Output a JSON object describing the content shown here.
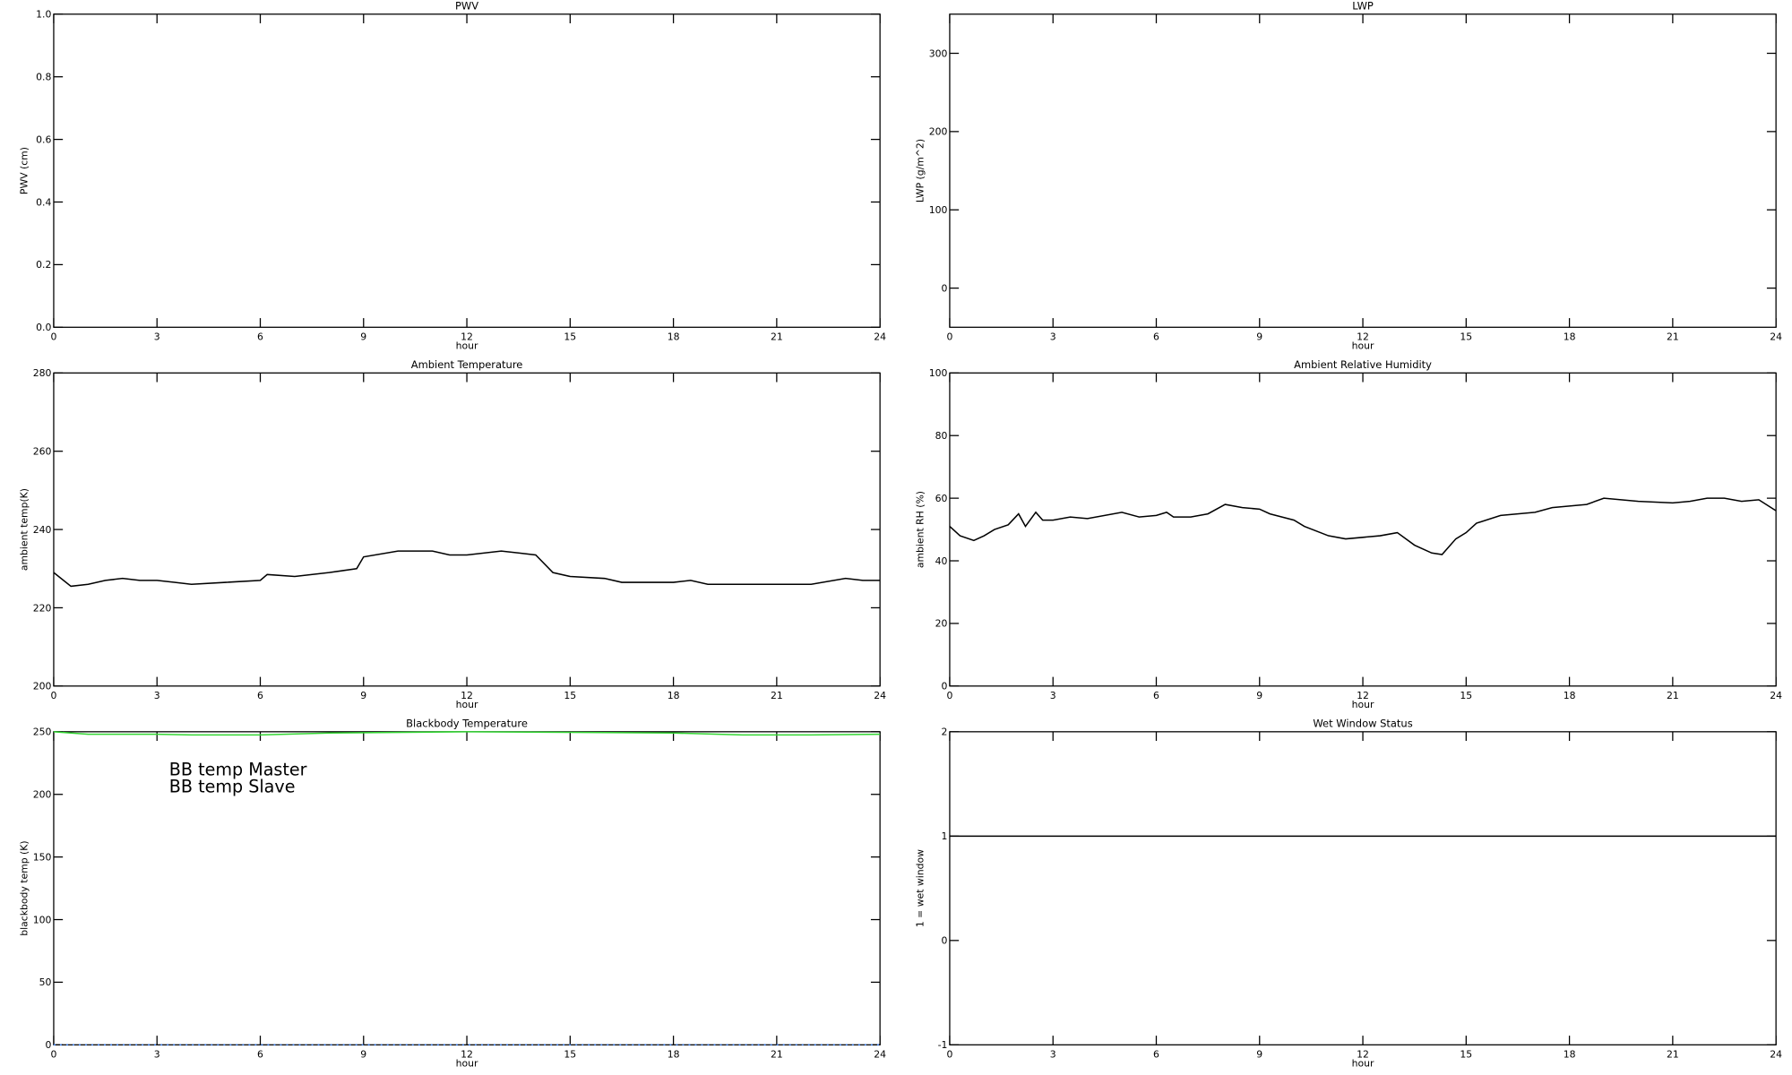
{
  "chart_data": [
    {
      "type": "line",
      "title": "PWV",
      "xlabel": "hour",
      "ylabel": "PWV (cm)",
      "xlim": [
        0,
        24
      ],
      "xticks": [
        0,
        3,
        6,
        9,
        12,
        15,
        18,
        21,
        24
      ],
      "ylim": [
        0,
        1
      ],
      "yticks": [
        {
          "value": 0,
          "label": "0.0"
        },
        0.2,
        0.4,
        0.6,
        0.8,
        {
          "value": 1,
          "label": "1.0"
        }
      ]
    },
    {
      "type": "line",
      "title": "LWP",
      "xlabel": "hour",
      "ylabel": "LWP (g/m^2)",
      "xlim": [
        0,
        24
      ],
      "xticks": [
        0,
        3,
        6,
        9,
        12,
        15,
        18,
        21,
        24
      ],
      "ylim": [
        -50,
        350
      ],
      "yticks": [
        0,
        100,
        200,
        300
      ]
    },
    {
      "type": "line",
      "title": "Ambient Temperature",
      "xlabel": "hour",
      "ylabel": "ambient temp(K)",
      "xlim": [
        0,
        24
      ],
      "xticks": [
        0,
        3,
        6,
        9,
        12,
        15,
        18,
        21,
        24
      ],
      "ylim": [
        200,
        280
      ],
      "yticks": [
        200,
        220,
        240,
        260,
        280
      ],
      "x": [
        0,
        0.5,
        1,
        1.5,
        2,
        2.5,
        3,
        3.5,
        4,
        5,
        6,
        6.2,
        7,
        8,
        8.8,
        9,
        10,
        11,
        11.5,
        12,
        13,
        13.5,
        14,
        14.5,
        15,
        16,
        16.5,
        17,
        18,
        18.5,
        19,
        20,
        21,
        22,
        23,
        23.5,
        24
      ],
      "series": [
        {
          "color": "#000000",
          "values": [
            229,
            225.5,
            226,
            227,
            227.5,
            227,
            227,
            226.5,
            226,
            226.5,
            227,
            228.5,
            228,
            229,
            230,
            233,
            234.5,
            234.5,
            233.5,
            233.5,
            234.5,
            234,
            233.5,
            229,
            228,
            227.5,
            226.5,
            226.5,
            226.5,
            227,
            226,
            226,
            226,
            226,
            227.5,
            227,
            227
          ]
        }
      ]
    },
    {
      "type": "line",
      "title": "Ambient Relative Humidity",
      "xlabel": "hour",
      "ylabel": "ambient RH (%)",
      "xlim": [
        0,
        24
      ],
      "xticks": [
        0,
        3,
        6,
        9,
        12,
        15,
        18,
        21,
        24
      ],
      "ylim": [
        0,
        100
      ],
      "yticks": [
        0,
        20,
        40,
        60,
        80,
        100
      ],
      "x": [
        0,
        0.3,
        0.7,
        1,
        1.3,
        1.7,
        2,
        2.2,
        2.5,
        2.7,
        3,
        3.5,
        4,
        5,
        5.5,
        6,
        6.3,
        6.5,
        7,
        7.5,
        8,
        8.5,
        9,
        9.3,
        10,
        10.3,
        11,
        11.5,
        12,
        12.5,
        13,
        13.5,
        14,
        14.3,
        14.7,
        15,
        15.3,
        16,
        17,
        17.5,
        18,
        18.5,
        19,
        19.5,
        20,
        21,
        21.5,
        22,
        22.5,
        23,
        23.5,
        24
      ],
      "series": [
        {
          "color": "#000000",
          "values": [
            51,
            48,
            46.5,
            48,
            50,
            51.5,
            55,
            51,
            55.5,
            53,
            53,
            54,
            53.5,
            55.5,
            54,
            54.5,
            55.5,
            54,
            54,
            55,
            58,
            57,
            56.5,
            55,
            53,
            51,
            48,
            47,
            47.5,
            48,
            49,
            45,
            42.5,
            42,
            47,
            49,
            52,
            54.5,
            55.5,
            57,
            57.5,
            58,
            60,
            59.5,
            59,
            58.5,
            59,
            60,
            60,
            59,
            59.5,
            56
          ]
        }
      ]
    },
    {
      "type": "line",
      "title": "Blackbody Temperature",
      "xlabel": "hour",
      "ylabel": "blackbody temp (K)",
      "xlim": [
        0,
        24
      ],
      "xticks": [
        0,
        3,
        6,
        9,
        12,
        15,
        18,
        21,
        24
      ],
      "ylim": [
        0,
        250
      ],
      "yticks": [
        0,
        50,
        100,
        150,
        200,
        250
      ],
      "legend": "upper left",
      "x": [
        0,
        1,
        3,
        4,
        6,
        8,
        12,
        15,
        18,
        20,
        22,
        24
      ],
      "series": [
        {
          "name": "BB temp Master",
          "color": "#3b7dea",
          "values": [
            0,
            0,
            0,
            0,
            0,
            0,
            0,
            0,
            0,
            0,
            0,
            0
          ]
        },
        {
          "name": "BB temp Slave",
          "color": "#33d633",
          "values": [
            250,
            248,
            248,
            247.5,
            247.5,
            249,
            250,
            249.5,
            249,
            247.5,
            247.5,
            248
          ]
        }
      ]
    },
    {
      "type": "line",
      "title": "Wet Window Status",
      "xlabel": "hour",
      "ylabel": "1 = wet window",
      "xlim": [
        0,
        24
      ],
      "xticks": [
        0,
        3,
        6,
        9,
        12,
        15,
        18,
        21,
        24
      ],
      "ylim": [
        -1,
        2
      ],
      "yticks": [
        -1,
        0,
        1,
        2
      ],
      "x": [
        0,
        24
      ],
      "series": [
        {
          "color": "#000000",
          "values": [
            1,
            1
          ]
        }
      ]
    }
  ]
}
